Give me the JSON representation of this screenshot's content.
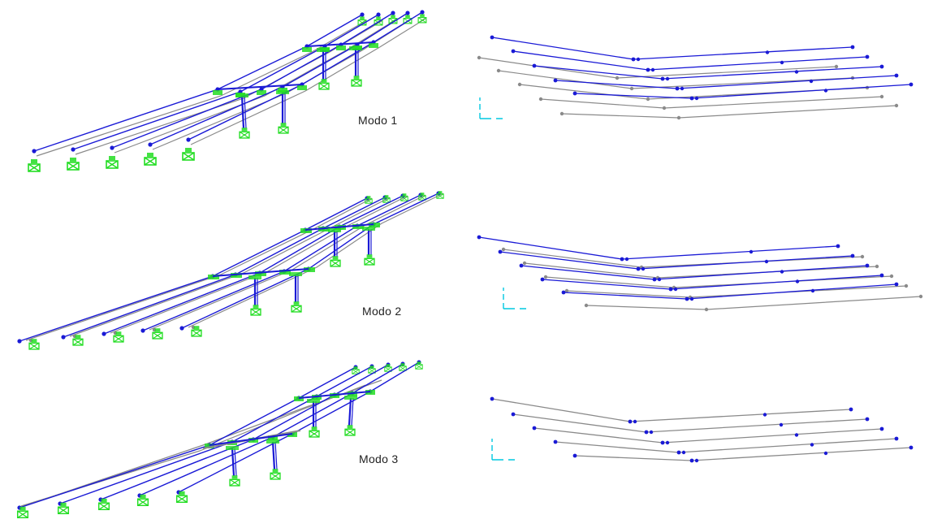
{
  "modes": [
    {
      "id": "mode-1",
      "label": "Modo 1"
    },
    {
      "id": "mode-2",
      "label": "Modo 2"
    },
    {
      "id": "mode-3",
      "label": "Modo 3"
    }
  ],
  "colors": {
    "deformed": "#1a1ad6",
    "undeformed": "#8a8a8a",
    "support": "#22dd22",
    "axes": "#00c8e0"
  }
}
